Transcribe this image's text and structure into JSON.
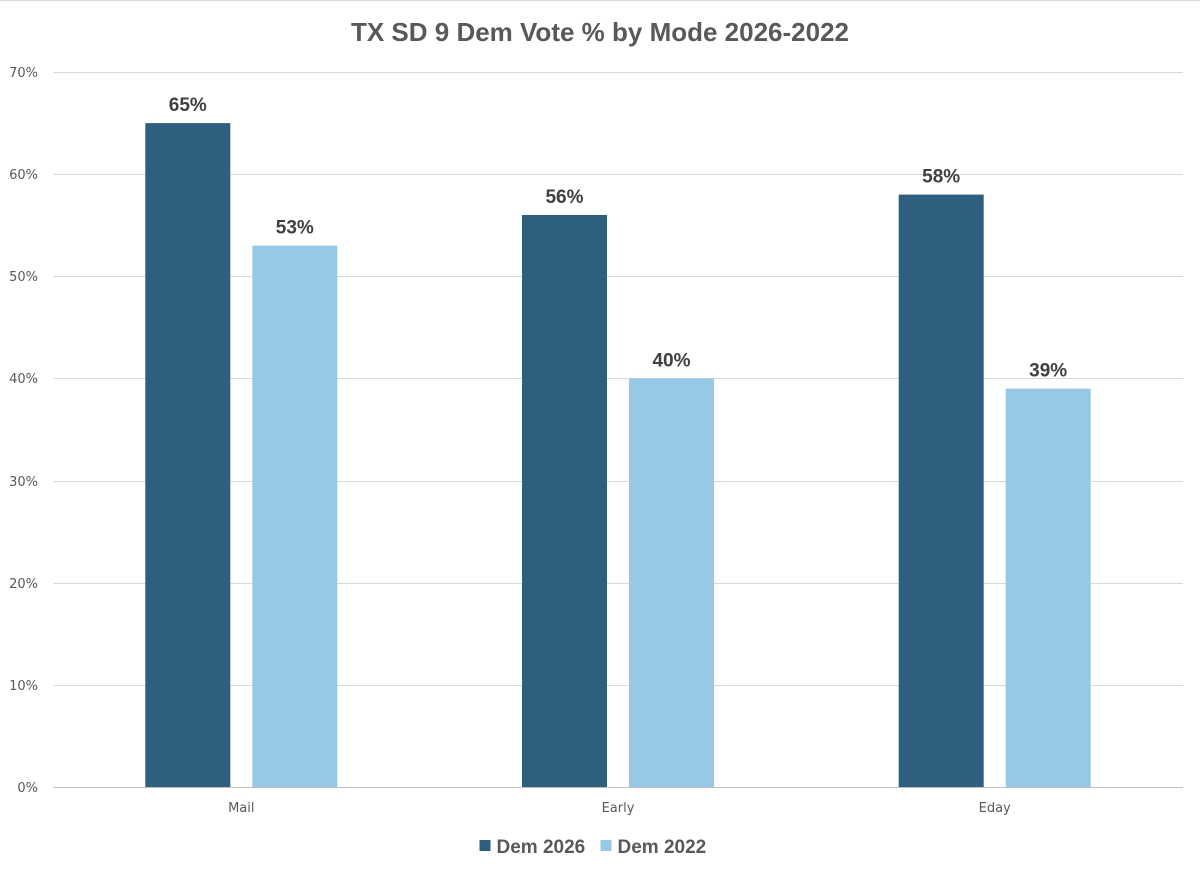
{
  "chart_data": {
    "type": "bar",
    "title": "TX SD 9 Dem Vote % by Mode 2026-2022",
    "categories": [
      "Mail",
      "Early",
      "Eday"
    ],
    "series": [
      {
        "name": "Dem 2026",
        "values": [
          65,
          56,
          58
        ],
        "labels": [
          "65%",
          "56%",
          "58%"
        ],
        "color": "#2e5f7e"
      },
      {
        "name": "Dem 2022",
        "values": [
          53,
          40,
          39
        ],
        "labels": [
          "53%",
          "40%",
          "39%"
        ],
        "color": "#97c9e6"
      }
    ],
    "ylim": [
      0,
      70
    ],
    "yticks": [
      0,
      10,
      20,
      30,
      40,
      50,
      60,
      70
    ],
    "ytick_labels": [
      "0%",
      "10%",
      "20%",
      "30%",
      "40%",
      "50%",
      "60%",
      "70%"
    ],
    "xlabel": "",
    "ylabel": "",
    "grid": true,
    "legend_position": "bottom"
  }
}
